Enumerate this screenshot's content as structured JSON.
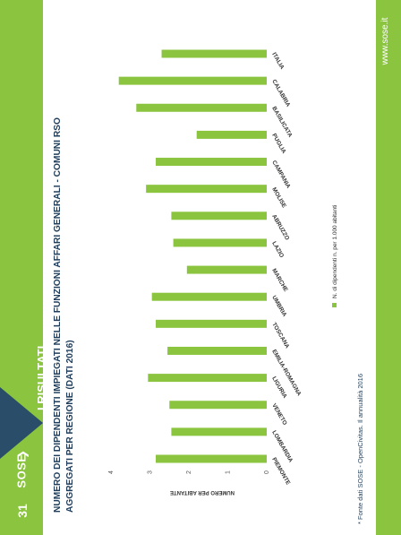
{
  "slide": {
    "page_number": "31",
    "section_title": "I RISULTATI",
    "website": "www.sose.it",
    "logo_text": "SOSE",
    "chart_title_line1": "NUMERO DEI DIPENDENTI IMPIEGATI NELLE FUNZIONI AFFARI GENERALI - COMUNI RSO",
    "chart_title_line2": "AGGREGATI PER REGIONE (DATI 2016)",
    "source": "* Fonte dati SOSE - OpenCivitas. Il annualità 2016"
  },
  "colors": {
    "bar": "#8bc53f",
    "band": "#8bc53f",
    "title": "#1f3d5a",
    "triangle": "#2a4d69"
  },
  "chart_data": {
    "type": "bar",
    "orientation": "vertical bars, figure rotated 90 degrees",
    "ylabel": "NUMERO PER ABITANTE",
    "ylim": [
      0,
      4
    ],
    "yticks": [
      0,
      1,
      2,
      3,
      4
    ],
    "categories": [
      "PIEMONTE",
      "LOMBARDIA",
      "VENETO",
      "LIGURIA",
      "EMILIA-ROMAGNA",
      "TOSCANA",
      "UMBRIA",
      "MARCHE",
      "LAZIO",
      "ABRUZZO",
      "MOLISE",
      "CAMPANIA",
      "PUGLIA",
      "BASILICATA",
      "CALABRIA",
      "ITALIA"
    ],
    "series": [
      {
        "name": "N. di dipendenti n. per 1.000 abitanti",
        "values": [
          2.85,
          2.45,
          2.5,
          3.05,
          2.55,
          2.85,
          2.95,
          2.05,
          2.4,
          2.45,
          3.1,
          2.85,
          1.8,
          3.35,
          3.8,
          2.7
        ]
      }
    ],
    "grid": false,
    "legend_position": "bottom"
  }
}
